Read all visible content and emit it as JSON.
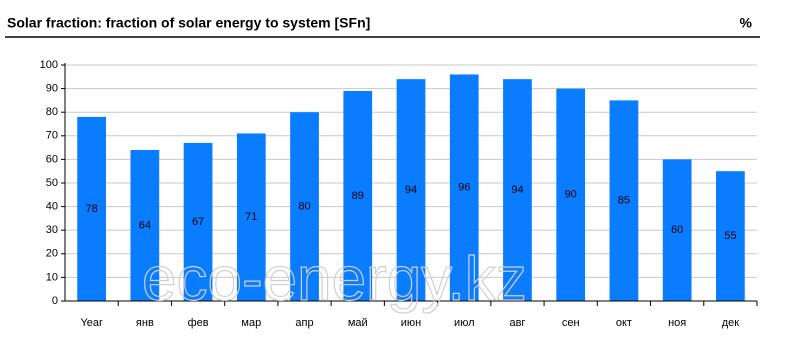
{
  "chart_data": {
    "type": "bar",
    "title": "Solar fraction: fraction of solar energy to system [SFn]",
    "unit": "%",
    "watermark": "eco-energy.kz",
    "categories": [
      "Year",
      "янв",
      "фев",
      "мар",
      "апр",
      "май",
      "июн",
      "июл",
      "авг",
      "сен",
      "окт",
      "ноя",
      "дек"
    ],
    "values": [
      78,
      64,
      67,
      71,
      80,
      89,
      94,
      96,
      94,
      90,
      85,
      60,
      55
    ],
    "color": "#0a7cff",
    "ylim": [
      0,
      100
    ],
    "yticks": [
      0,
      10,
      20,
      30,
      40,
      50,
      60,
      70,
      80,
      90,
      100
    ],
    "grid": true
  }
}
